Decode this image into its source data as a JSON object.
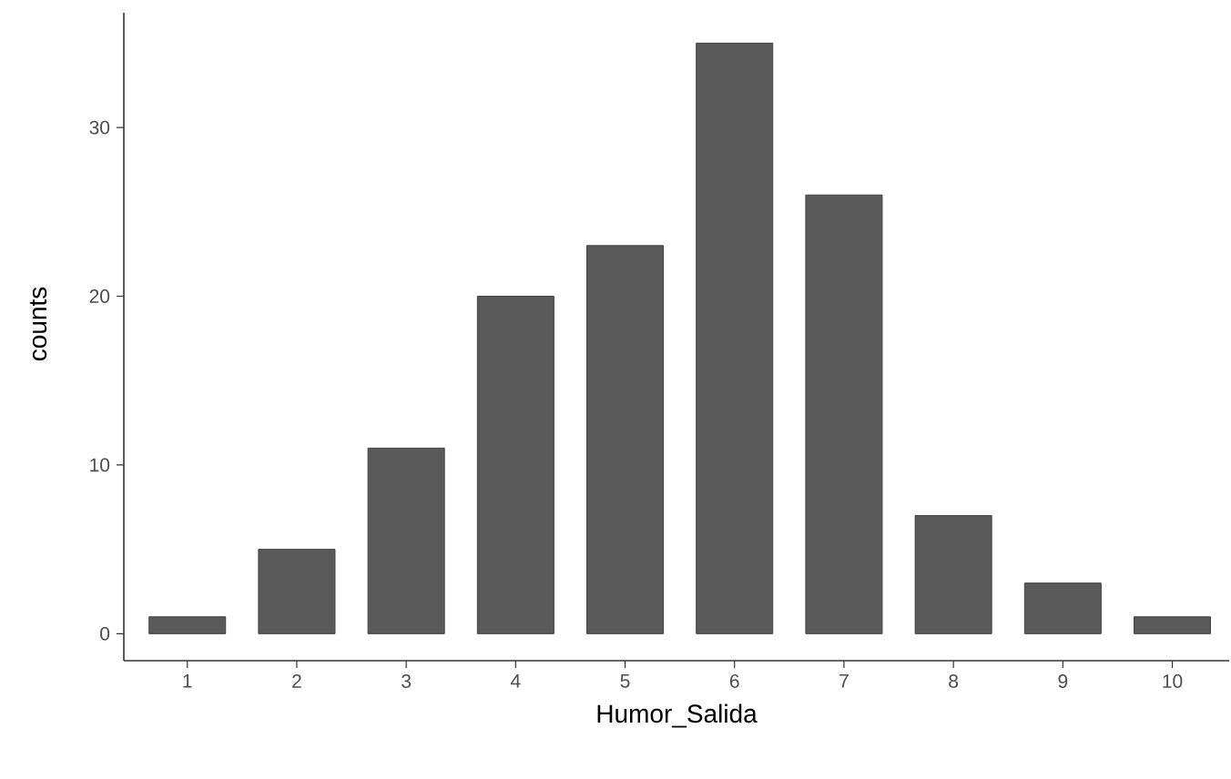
{
  "chart_data": {
    "type": "bar",
    "xlabel": "Humor_Salida",
    "ylabel": "counts",
    "categories": [
      "1",
      "2",
      "3",
      "4",
      "5",
      "6",
      "7",
      "8",
      "9",
      "10"
    ],
    "values": [
      1,
      5,
      11,
      20,
      23,
      35,
      26,
      7,
      3,
      1
    ],
    "color": "#595959",
    "ylim": [
      -1.6,
      36.8
    ],
    "yticks": [
      0,
      10,
      20,
      30
    ]
  }
}
